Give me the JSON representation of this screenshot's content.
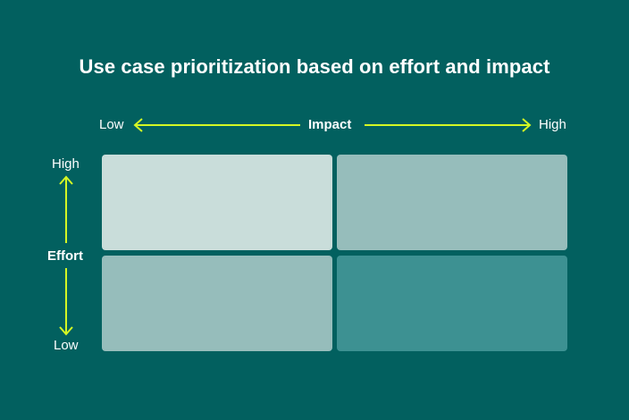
{
  "title": "Use case prioritization based on effort and impact",
  "impact_axis": {
    "label": "Impact",
    "low": "Low",
    "high": "High"
  },
  "effort_axis": {
    "label": "Effort",
    "high": "High",
    "low": "Low"
  },
  "colors": {
    "background": "#02605f",
    "arrow": "#d4f724",
    "cell_high_effort_low_impact": "#c9ddda",
    "cell_high_effort_high_impact": "#96bdbb",
    "cell_low_effort_low_impact": "#96bdbb",
    "cell_low_effort_high_impact": "#3d9192"
  }
}
